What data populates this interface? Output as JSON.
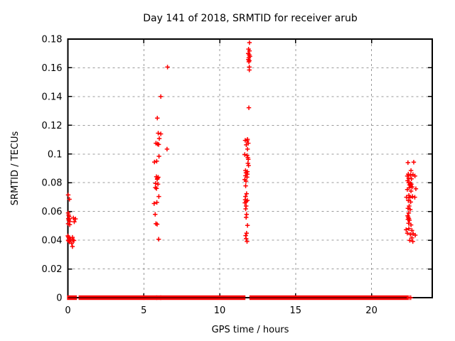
{
  "chart_data": {
    "type": "scatter",
    "title": "Day 141 of 2018, SRMTID for receiver arub",
    "xlabel": "GPS time / hours",
    "ylabel": "SRMTID / TECUs",
    "xlim": [
      0,
      24
    ],
    "ylim": [
      0,
      0.18
    ],
    "grid": true,
    "legend": "none",
    "xticks": {
      "values": [
        0,
        5,
        10,
        15,
        20
      ],
      "labels": [
        "0",
        "5",
        "10",
        "15",
        "20"
      ]
    },
    "yticks": {
      "values": [
        0,
        0.02,
        0.04,
        0.06,
        0.08,
        0.1,
        0.12,
        0.14,
        0.16,
        0.18
      ],
      "labels": [
        "0",
        "0.02",
        "0.04",
        "0.06",
        "0.08",
        "0.1",
        "0.12",
        "0.14",
        "0.16",
        "0.18"
      ]
    },
    "colors": {
      "marker": "#ff0000",
      "grid": "#9a9a9a",
      "axis": "#000000",
      "background": "#ffffff"
    },
    "marker_shape": "plus",
    "series": [
      {
        "name": "SRMTID",
        "points": [
          [
            0.02,
            0.0715
          ],
          [
            0.1,
            0.0685
          ],
          [
            0.02,
            0.059
          ],
          [
            0.05,
            0.0575
          ],
          [
            0.08,
            0.0565
          ],
          [
            0.03,
            0.055
          ],
          [
            0.06,
            0.054
          ],
          [
            0.1,
            0.055
          ],
          [
            0.12,
            0.053
          ],
          [
            0.36,
            0.0555
          ],
          [
            0.5,
            0.0548
          ],
          [
            0.42,
            0.0528
          ],
          [
            0.02,
            0.0515
          ],
          [
            0.12,
            0.0508
          ],
          [
            0.0,
            0.043
          ],
          [
            0.04,
            0.0422
          ],
          [
            0.08,
            0.0415
          ],
          [
            0.13,
            0.0408
          ],
          [
            0.02,
            0.04
          ],
          [
            0.06,
            0.0395
          ],
          [
            0.11,
            0.0388
          ],
          [
            0.3,
            0.042
          ],
          [
            0.34,
            0.04
          ],
          [
            0.4,
            0.0398
          ],
          [
            0.25,
            0.0378
          ],
          [
            0.3,
            0.0356
          ],
          [
            6.56,
            0.1605
          ],
          [
            6.12,
            0.14
          ],
          [
            5.89,
            0.125
          ],
          [
            5.95,
            0.1145
          ],
          [
            6.12,
            0.114
          ],
          [
            6.02,
            0.1108
          ],
          [
            5.8,
            0.1075
          ],
          [
            5.9,
            0.107
          ],
          [
            5.98,
            0.1066
          ],
          [
            6.53,
            0.1034
          ],
          [
            6.0,
            0.0984
          ],
          [
            5.85,
            0.095
          ],
          [
            5.7,
            0.0944
          ],
          [
            5.83,
            0.0842
          ],
          [
            5.95,
            0.0838
          ],
          [
            5.9,
            0.0832
          ],
          [
            5.88,
            0.0824
          ],
          [
            5.78,
            0.0795
          ],
          [
            5.93,
            0.079
          ],
          [
            5.76,
            0.0766
          ],
          [
            5.84,
            0.076
          ],
          [
            5.99,
            0.0704
          ],
          [
            5.86,
            0.0663
          ],
          [
            5.68,
            0.0655
          ],
          [
            5.75,
            0.058
          ],
          [
            5.8,
            0.0515
          ],
          [
            5.88,
            0.0511
          ],
          [
            5.98,
            0.0407
          ],
          [
            11.96,
            0.1775
          ],
          [
            11.9,
            0.173
          ],
          [
            11.96,
            0.1718
          ],
          [
            11.88,
            0.17
          ],
          [
            11.94,
            0.169
          ],
          [
            11.99,
            0.168
          ],
          [
            11.92,
            0.167
          ],
          [
            11.89,
            0.1658
          ],
          [
            11.95,
            0.165
          ],
          [
            11.92,
            0.1642
          ],
          [
            11.95,
            0.1605
          ],
          [
            11.95,
            0.1585
          ],
          [
            11.92,
            0.1322
          ],
          [
            11.83,
            0.1102
          ],
          [
            11.68,
            0.1095
          ],
          [
            11.8,
            0.1092
          ],
          [
            11.88,
            0.1075
          ],
          [
            11.75,
            0.1064
          ],
          [
            11.83,
            0.1034
          ],
          [
            11.65,
            0.0996
          ],
          [
            11.8,
            0.099
          ],
          [
            11.85,
            0.0975
          ],
          [
            11.88,
            0.0963
          ],
          [
            11.86,
            0.0935
          ],
          [
            11.9,
            0.092
          ],
          [
            11.7,
            0.0885
          ],
          [
            11.82,
            0.0877
          ],
          [
            11.73,
            0.0869
          ],
          [
            11.82,
            0.086
          ],
          [
            11.7,
            0.0849
          ],
          [
            11.8,
            0.0839
          ],
          [
            11.65,
            0.0822
          ],
          [
            11.73,
            0.0811
          ],
          [
            11.71,
            0.0778
          ],
          [
            11.77,
            0.0724
          ],
          [
            11.7,
            0.0704
          ],
          [
            11.68,
            0.0682
          ],
          [
            11.82,
            0.0677
          ],
          [
            11.74,
            0.067
          ],
          [
            11.66,
            0.066
          ],
          [
            11.74,
            0.0638
          ],
          [
            11.71,
            0.0618
          ],
          [
            11.77,
            0.058
          ],
          [
            11.74,
            0.0559
          ],
          [
            11.83,
            0.0503
          ],
          [
            11.77,
            0.0449
          ],
          [
            11.71,
            0.0432
          ],
          [
            11.74,
            0.0411
          ],
          [
            11.8,
            0.0391
          ],
          [
            22.4,
            0.094
          ],
          [
            22.78,
            0.0943
          ],
          [
            22.6,
            0.0885
          ],
          [
            22.42,
            0.086
          ],
          [
            22.58,
            0.0852
          ],
          [
            22.73,
            0.0857
          ],
          [
            22.86,
            0.0847
          ],
          [
            22.36,
            0.0847
          ],
          [
            22.45,
            0.0831
          ],
          [
            22.63,
            0.0827
          ],
          [
            22.38,
            0.0814
          ],
          [
            22.45,
            0.08
          ],
          [
            22.55,
            0.0795
          ],
          [
            22.62,
            0.079
          ],
          [
            22.5,
            0.0785
          ],
          [
            22.58,
            0.0778
          ],
          [
            22.68,
            0.077
          ],
          [
            22.48,
            0.0765
          ],
          [
            22.36,
            0.0753
          ],
          [
            22.92,
            0.0758
          ],
          [
            22.6,
            0.0742
          ],
          [
            22.46,
            0.0712
          ],
          [
            22.3,
            0.0699
          ],
          [
            22.52,
            0.0696
          ],
          [
            22.7,
            0.0704
          ],
          [
            22.85,
            0.0699
          ],
          [
            22.42,
            0.0676
          ],
          [
            22.58,
            0.0666
          ],
          [
            22.48,
            0.0638
          ],
          [
            22.4,
            0.0622
          ],
          [
            22.55,
            0.0613
          ],
          [
            22.45,
            0.0589
          ],
          [
            22.38,
            0.057
          ],
          [
            22.42,
            0.056
          ],
          [
            22.46,
            0.055
          ],
          [
            22.4,
            0.0545
          ],
          [
            22.5,
            0.0539
          ],
          [
            22.44,
            0.0518
          ],
          [
            22.6,
            0.0506
          ],
          [
            22.28,
            0.0473
          ],
          [
            22.46,
            0.0481
          ],
          [
            22.66,
            0.0468
          ],
          [
            22.36,
            0.0449
          ],
          [
            22.56,
            0.044
          ],
          [
            22.75,
            0.0445
          ],
          [
            22.88,
            0.0435
          ],
          [
            22.66,
            0.0416
          ],
          [
            22.52,
            0.0399
          ],
          [
            22.72,
            0.0391
          ]
        ],
        "zero_line_segments": [
          [
            0.04,
            0.5
          ],
          [
            0.8,
            4.93
          ],
          [
            5.08,
            5.79
          ],
          [
            5.91,
            6.06
          ],
          [
            6.17,
            11.6
          ],
          [
            12.05,
            22.32
          ]
        ],
        "zero_isolated_points": [
          22.47,
          22.58
        ]
      }
    ]
  }
}
